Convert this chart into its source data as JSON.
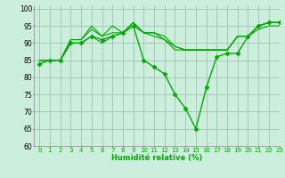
{
  "title": "",
  "xlabel": "Humidité relative (%)",
  "ylabel": "",
  "background_color": "#cceedd",
  "grid_color": "#99bbaa",
  "line_color": "#00aa00",
  "xlim": [
    -0.5,
    23
  ],
  "ylim": [
    60,
    101
  ],
  "yticks": [
    60,
    65,
    70,
    75,
    80,
    85,
    90,
    95,
    100
  ],
  "xticks": [
    0,
    1,
    2,
    3,
    4,
    5,
    6,
    7,
    8,
    9,
    10,
    11,
    12,
    13,
    14,
    15,
    16,
    17,
    18,
    19,
    20,
    21,
    22,
    23
  ],
  "series": [
    {
      "x": [
        0,
        1,
        2,
        3,
        4,
        5,
        6,
        7,
        8,
        9,
        10,
        11,
        12,
        13,
        14,
        15,
        16,
        17,
        18,
        19,
        20,
        21,
        22,
        23
      ],
      "y": [
        84,
        85,
        85,
        90,
        90,
        92,
        91,
        92,
        93,
        95,
        85,
        83,
        81,
        75,
        71,
        65,
        77,
        86,
        87,
        87,
        92,
        95,
        96,
        96
      ],
      "marker": "D",
      "markersize": 2.5,
      "linewidth": 1.0
    },
    {
      "x": [
        0,
        1,
        2,
        3,
        4,
        5,
        6,
        7,
        8,
        9,
        10,
        11,
        12,
        13,
        14,
        15,
        16,
        17,
        18,
        19,
        20,
        21,
        22,
        23
      ],
      "y": [
        85,
        85,
        85,
        91,
        91,
        95,
        92,
        95,
        93,
        96,
        93,
        93,
        91,
        89,
        88,
        88,
        88,
        88,
        88,
        92,
        92,
        95,
        96,
        96
      ],
      "marker": null,
      "markersize": 0,
      "linewidth": 0.8
    },
    {
      "x": [
        0,
        1,
        2,
        3,
        4,
        5,
        6,
        7,
        8,
        9,
        10,
        11,
        12,
        13,
        14,
        15,
        16,
        17,
        18,
        19,
        20,
        21,
        22,
        23
      ],
      "y": [
        85,
        85,
        85,
        91,
        91,
        94,
        92,
        93,
        93,
        96,
        93,
        93,
        92,
        89,
        88,
        88,
        88,
        88,
        88,
        92,
        92,
        95,
        96,
        96
      ],
      "marker": null,
      "markersize": 0,
      "linewidth": 0.8
    },
    {
      "x": [
        0,
        1,
        2,
        3,
        4,
        5,
        6,
        7,
        8,
        9,
        10,
        11,
        12,
        13,
        14,
        15,
        16,
        17,
        18,
        19,
        20,
        21,
        22,
        23
      ],
      "y": [
        85,
        85,
        85,
        90,
        90,
        92,
        90,
        92,
        93,
        95,
        93,
        92,
        91,
        88,
        88,
        88,
        88,
        88,
        88,
        92,
        92,
        94,
        95,
        95
      ],
      "marker": null,
      "markersize": 0,
      "linewidth": 0.8
    }
  ]
}
